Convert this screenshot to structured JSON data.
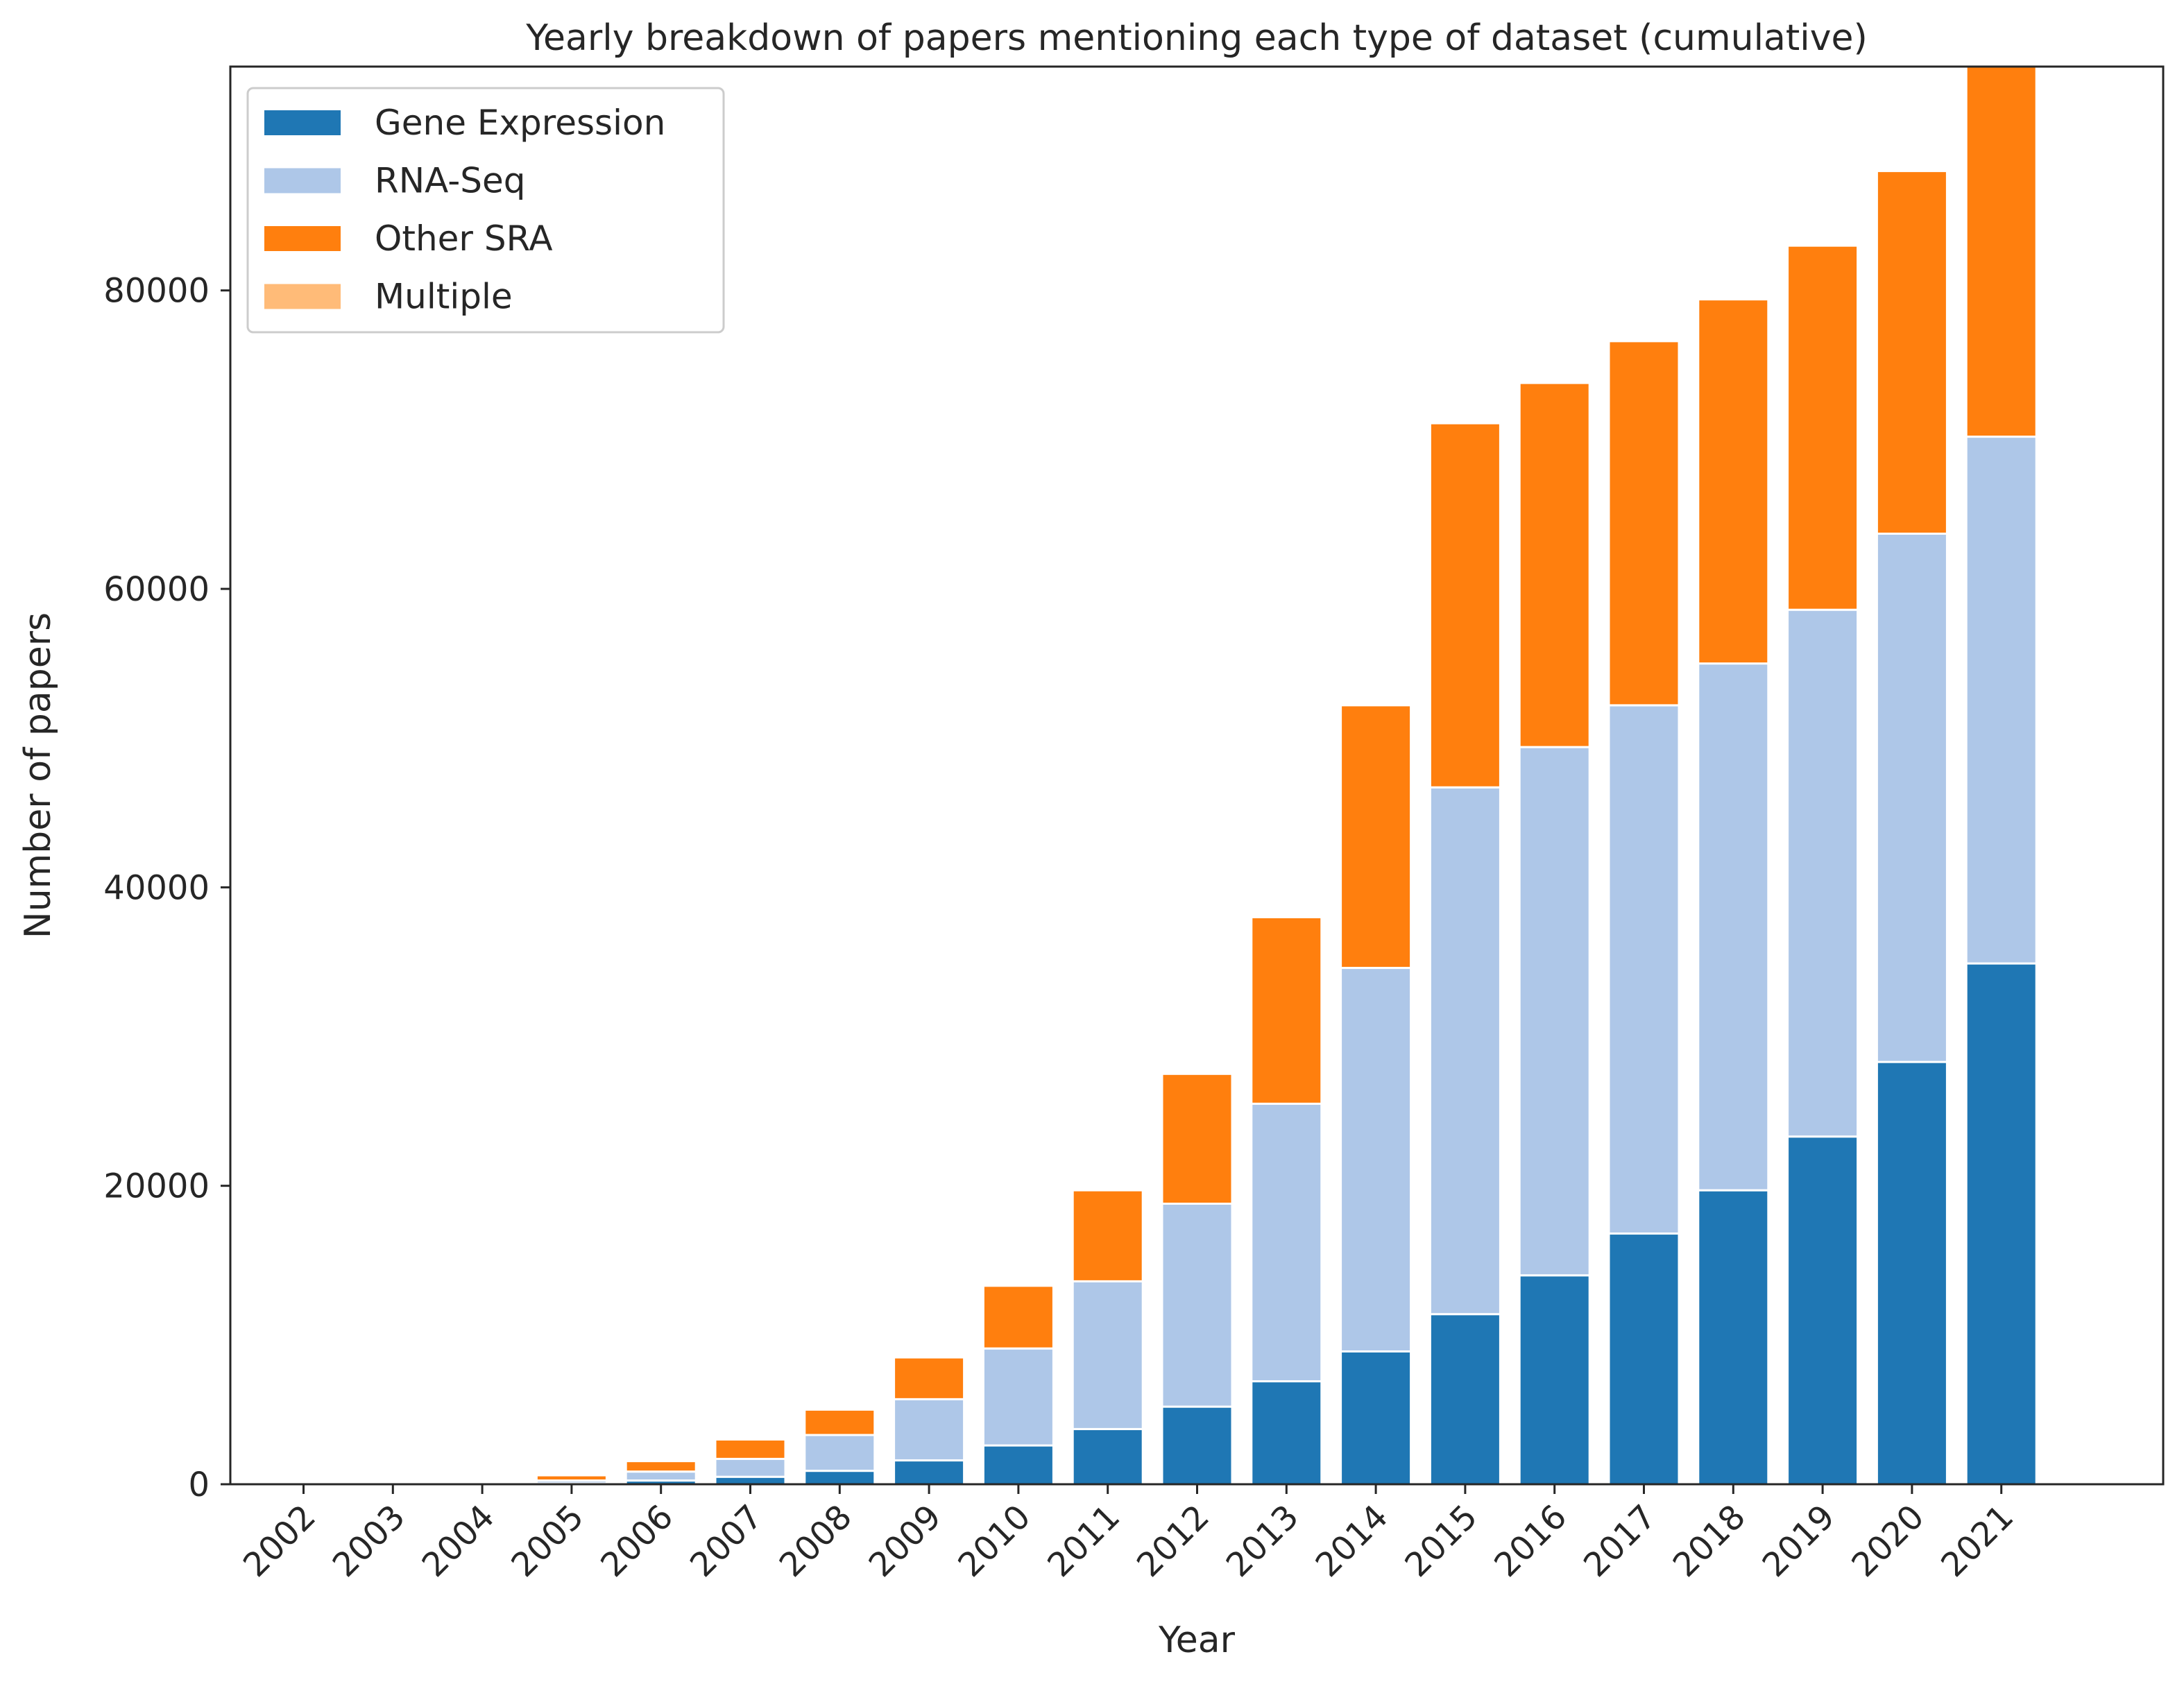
{
  "chart_data": {
    "type": "bar",
    "stacked": true,
    "title": "Yearly breakdown of papers mentioning each type of dataset (cumulative)",
    "xlabel": "Year",
    "ylabel": "Number of papers",
    "ylim": [
      0,
      95000
    ],
    "yticks": [
      0,
      20000,
      40000,
      60000,
      80000
    ],
    "grid": false,
    "legend_position": "upper-left",
    "categories": [
      "2002",
      "2003",
      "2004",
      "2005",
      "2006",
      "2007",
      "2008",
      "2009",
      "2010",
      "2011",
      "2012",
      "2013",
      "2014",
      "2015",
      "2016",
      "2017",
      "2018",
      "2019",
      "2020",
      "2021"
    ],
    "series": [
      {
        "name": "Gene Expression",
        "color": "#1f77b4",
        "values": [
          0,
          0,
          0,
          50,
          250,
          500,
          900,
          1600,
          2600,
          3700,
          5200,
          6900,
          8900,
          11400,
          14000,
          16800,
          19700,
          23300,
          28300,
          34900
        ]
      },
      {
        "name": "RNA-Seq",
        "color": "#aec7e8",
        "values": [
          0,
          0,
          0,
          200,
          600,
          1200,
          2400,
          4100,
          6500,
          9900,
          13600,
          18600,
          25700,
          35300,
          35400,
          35400,
          35300,
          35300,
          35400,
          35300
        ]
      },
      {
        "name": "Other SRA",
        "color": "#ff7f0e",
        "values": [
          0,
          0,
          0,
          350,
          700,
          1300,
          1700,
          2800,
          4200,
          6100,
          8700,
          12500,
          17600,
          24400,
          24400,
          24400,
          24400,
          24400,
          24300,
          24800
        ]
      },
      {
        "name": "Multiple",
        "color": "#ffbb78",
        "values": [
          0,
          0,
          0,
          0,
          0,
          0,
          0,
          0,
          0,
          0,
          0,
          0,
          0,
          0,
          0,
          0,
          0,
          0,
          0,
          0
        ]
      }
    ]
  }
}
